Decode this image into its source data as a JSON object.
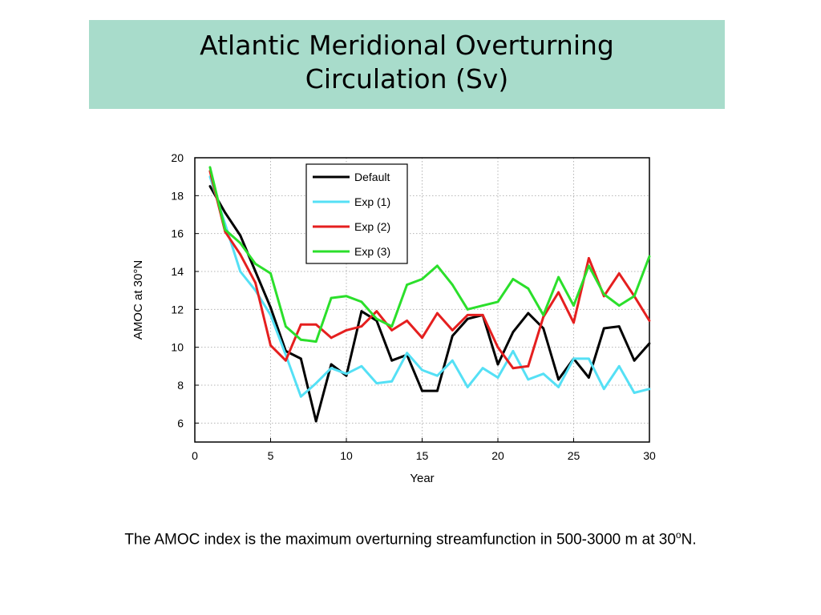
{
  "slide": {
    "title_line1": "Atlantic Meridional Overturning",
    "title_line2": "Circulation (Sv)",
    "caption_prefix": "The AMOC index is the maximum overturning streamfunction in 500-3000 m at 30",
    "caption_sup": "o",
    "caption_suffix": "N."
  },
  "chart_data": {
    "type": "line",
    "xlabel": "Year",
    "ylabel": "AMOC at 30°N",
    "xlim": [
      0,
      30
    ],
    "ylim": [
      5,
      20
    ],
    "xticks": [
      0,
      5,
      10,
      15,
      20,
      25,
      30
    ],
    "yticks": [
      6,
      8,
      10,
      12,
      14,
      16,
      18,
      20
    ],
    "grid": true,
    "legend_position": "top-center",
    "x": [
      1,
      2,
      3,
      4,
      5,
      6,
      7,
      8,
      9,
      10,
      11,
      12,
      13,
      14,
      15,
      16,
      17,
      18,
      19,
      20,
      21,
      22,
      23,
      24,
      25,
      26,
      27,
      28,
      29,
      30
    ],
    "series": [
      {
        "name": "Default",
        "color": "#000000",
        "values": [
          18.5,
          17.1,
          15.9,
          14.0,
          12.1,
          9.8,
          9.4,
          6.1,
          9.1,
          8.5,
          11.9,
          11.4,
          9.3,
          9.6,
          7.7,
          7.7,
          10.6,
          11.5,
          11.7,
          9.1,
          10.8,
          11.8,
          11.0,
          8.3,
          9.4,
          8.4,
          11.0,
          11.1,
          9.3,
          10.2
        ]
      },
      {
        "name": "Exp (1)",
        "color": "#55e0f5",
        "values": [
          19.0,
          16.5,
          14.0,
          13.0,
          11.7,
          9.6,
          7.4,
          8.1,
          8.9,
          8.6,
          9.0,
          8.1,
          8.2,
          9.7,
          8.8,
          8.5,
          9.3,
          7.9,
          8.9,
          8.4,
          9.8,
          8.3,
          8.6,
          7.9,
          9.4,
          9.4,
          7.8,
          9.0,
          7.6,
          7.8
        ]
      },
      {
        "name": "Exp (2)",
        "color": "#e51f1f",
        "values": [
          19.3,
          16.1,
          14.9,
          13.4,
          10.1,
          9.3,
          11.2,
          11.2,
          10.5,
          10.9,
          11.1,
          11.9,
          10.9,
          11.4,
          10.5,
          11.8,
          10.9,
          11.7,
          11.7,
          10.0,
          8.9,
          9.0,
          11.6,
          12.9,
          11.3,
          14.7,
          12.7,
          13.9,
          12.7,
          11.4
        ]
      },
      {
        "name": "Exp (3)",
        "color": "#2bdf2b",
        "values": [
          19.5,
          16.2,
          15.5,
          14.4,
          13.9,
          11.1,
          10.4,
          10.3,
          12.6,
          12.7,
          12.4,
          11.5,
          11.1,
          13.3,
          13.6,
          14.3,
          13.3,
          12.0,
          12.2,
          12.4,
          13.6,
          13.1,
          11.7,
          13.7,
          12.2,
          14.3,
          12.8,
          12.2,
          12.7,
          14.8
        ]
      }
    ]
  }
}
